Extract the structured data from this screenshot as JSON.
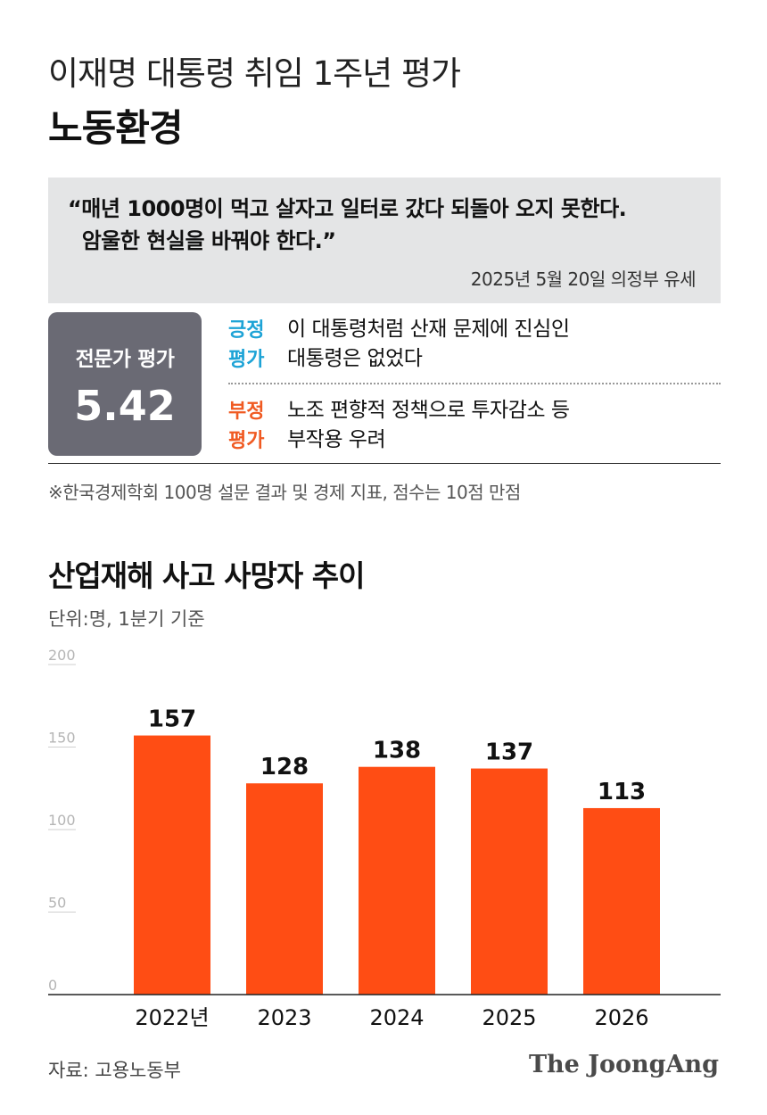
{
  "header": {
    "subtitle": "이재명 대통령 취임 1주년 평가",
    "title": "노동환경"
  },
  "quote": {
    "line1": "“매년 1000명이 먹고 살자고 일터로 갔다 되돌아 오지 못한다.",
    "line2": "  암울한 현실을 바꿔야 한다.”",
    "source": "2025년 5월 20일 의정부 유세"
  },
  "evaluation": {
    "label": "전문가 평가",
    "score": "5.42",
    "positive": {
      "tag_line1": "긍정",
      "tag_line2": "평가",
      "text_line1": "이 대통령처럼 산재 문제에 진심인",
      "text_line2": "대통령은 없었다",
      "color": "#1da3d6"
    },
    "negative": {
      "tag_line1": "부정",
      "tag_line2": "평가",
      "text_line1": "노조 편향적 정책으로 투자감소 등",
      "text_line2": "부작용 우려",
      "color": "#f05a22"
    },
    "note": "※한국경제학회 100명 설문 결과 및 경제 지표, 점수는 10점 만점"
  },
  "chart_data": {
    "type": "bar",
    "title": "산업재해 사고 사망자 추이",
    "unit_label": "단위:명, 1분기 기준",
    "categories": [
      "2022년",
      "2023",
      "2024",
      "2025",
      "2026"
    ],
    "values": [
      157,
      128,
      138,
      137,
      113
    ],
    "ylim": [
      0,
      200
    ],
    "yticks": [
      0,
      50,
      100,
      150,
      200
    ],
    "grid": true,
    "bar_color": "#ff4d14"
  },
  "footer": {
    "source": "자료: 고용노동부",
    "logo": "The JoongAng"
  }
}
